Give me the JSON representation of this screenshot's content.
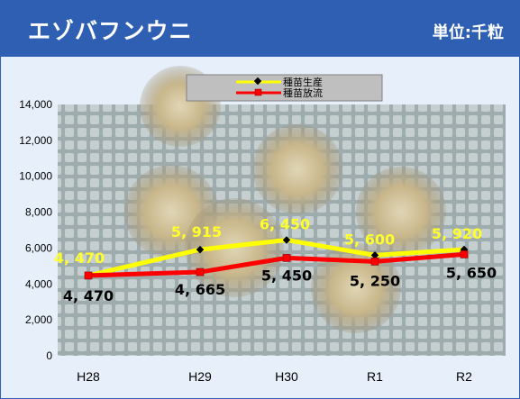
{
  "header": {
    "title": "エゾバフンウニ",
    "unit": "単位:千粒",
    "bg_color": "#2f5fb3"
  },
  "chart_data": {
    "type": "line",
    "title": "",
    "xlabel": "",
    "ylabel": "",
    "categories": [
      "H28",
      "H29",
      "H30",
      "R1",
      "R2"
    ],
    "ylim": [
      0,
      14000
    ],
    "yticks": [
      0,
      2000,
      4000,
      6000,
      8000,
      10000,
      12000,
      14000
    ],
    "ytick_labels": [
      "0",
      "2,000",
      "4,000",
      "6,000",
      "8,000",
      "10,000",
      "12,000",
      "14,000"
    ],
    "grid": false,
    "legend": "top-center",
    "background": "photo of sea urchins on mesh",
    "series": [
      {
        "name": "種苗生産",
        "color": "#ffff00",
        "marker": "diamond",
        "values": [
          4470,
          5915,
          6450,
          5600,
          5920
        ],
        "labels": [
          "4, 470",
          "5, 915",
          "6, 450",
          "5, 600",
          "5, 920"
        ]
      },
      {
        "name": "種苗放流",
        "color": "#ff0000",
        "marker": "square",
        "values": [
          4470,
          4665,
          5450,
          5250,
          5650
        ],
        "labels": [
          "4, 470",
          "4, 665",
          "5, 450",
          "5, 250",
          "5, 650"
        ]
      }
    ]
  }
}
